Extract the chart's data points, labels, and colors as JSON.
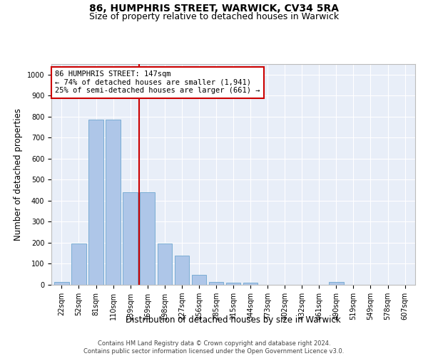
{
  "title_line1": "86, HUMPHRIS STREET, WARWICK, CV34 5RA",
  "title_line2": "Size of property relative to detached houses in Warwick",
  "xlabel": "Distribution of detached houses by size in Warwick",
  "ylabel": "Number of detached properties",
  "categories": [
    "22sqm",
    "52sqm",
    "81sqm",
    "110sqm",
    "139sqm",
    "169sqm",
    "198sqm",
    "227sqm",
    "256sqm",
    "285sqm",
    "315sqm",
    "344sqm",
    "373sqm",
    "402sqm",
    "432sqm",
    "461sqm",
    "490sqm",
    "519sqm",
    "549sqm",
    "578sqm",
    "607sqm"
  ],
  "values": [
    15,
    195,
    785,
    785,
    440,
    440,
    195,
    140,
    48,
    15,
    10,
    10,
    0,
    0,
    0,
    0,
    15,
    0,
    0,
    0,
    0
  ],
  "bar_color": "#aec6e8",
  "bar_edge_color": "#7aadd4",
  "vline_x": 4.5,
  "vline_color": "#cc0000",
  "annotation_text": "86 HUMPHRIS STREET: 147sqm\n← 74% of detached houses are smaller (1,941)\n25% of semi-detached houses are larger (661) →",
  "annotation_box_color": "#ffffff",
  "annotation_box_edge_color": "#cc0000",
  "ylim": [
    0,
    1050
  ],
  "yticks": [
    0,
    100,
    200,
    300,
    400,
    500,
    600,
    700,
    800,
    900,
    1000
  ],
  "background_color": "#e8eef8",
  "footnote": "Contains HM Land Registry data © Crown copyright and database right 2024.\nContains public sector information licensed under the Open Government Licence v3.0.",
  "title_fontsize": 10,
  "subtitle_fontsize": 9,
  "tick_fontsize": 7,
  "label_fontsize": 8.5,
  "annot_fontsize": 7.5
}
